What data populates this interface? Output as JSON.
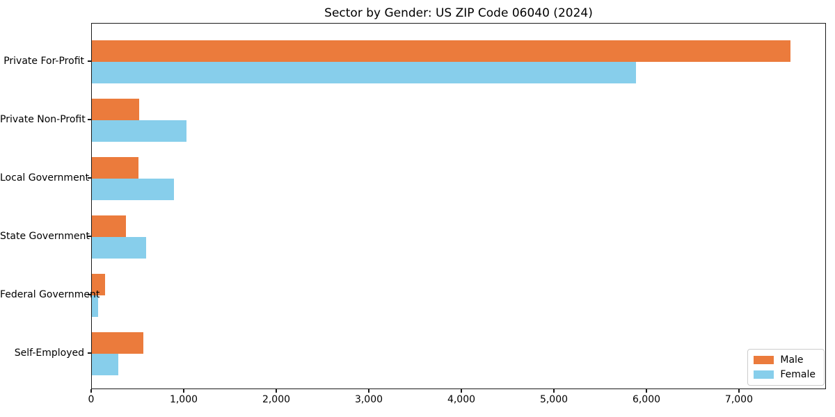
{
  "chart_data": {
    "type": "bar",
    "orientation": "horizontal",
    "title": "Sector by Gender: US ZIP Code 06040 (2024)",
    "categories": [
      "Private For-Profit",
      "Private Non-Profit",
      "Local Government",
      "State Government",
      "Federal Government",
      "Self-Employed"
    ],
    "series": [
      {
        "name": "Male",
        "color": "#EB7B3C",
        "values": [
          7550,
          510,
          500,
          365,
          140,
          555
        ]
      },
      {
        "name": "Female",
        "color": "#87CEEB",
        "values": [
          5880,
          1020,
          890,
          585,
          65,
          285
        ]
      }
    ],
    "xlabel": "",
    "ylabel": "",
    "xlim": [
      0,
      7940
    ],
    "xticks": [
      0,
      1000,
      2000,
      3000,
      4000,
      5000,
      6000,
      7000
    ],
    "xtick_labels": [
      "0",
      "1,000",
      "2,000",
      "3,000",
      "4,000",
      "5,000",
      "6,000",
      "7,000"
    ],
    "legend": {
      "position": "lower right"
    },
    "grid": false,
    "background": "#ffffff",
    "spine_color": "#1a1a1a"
  }
}
